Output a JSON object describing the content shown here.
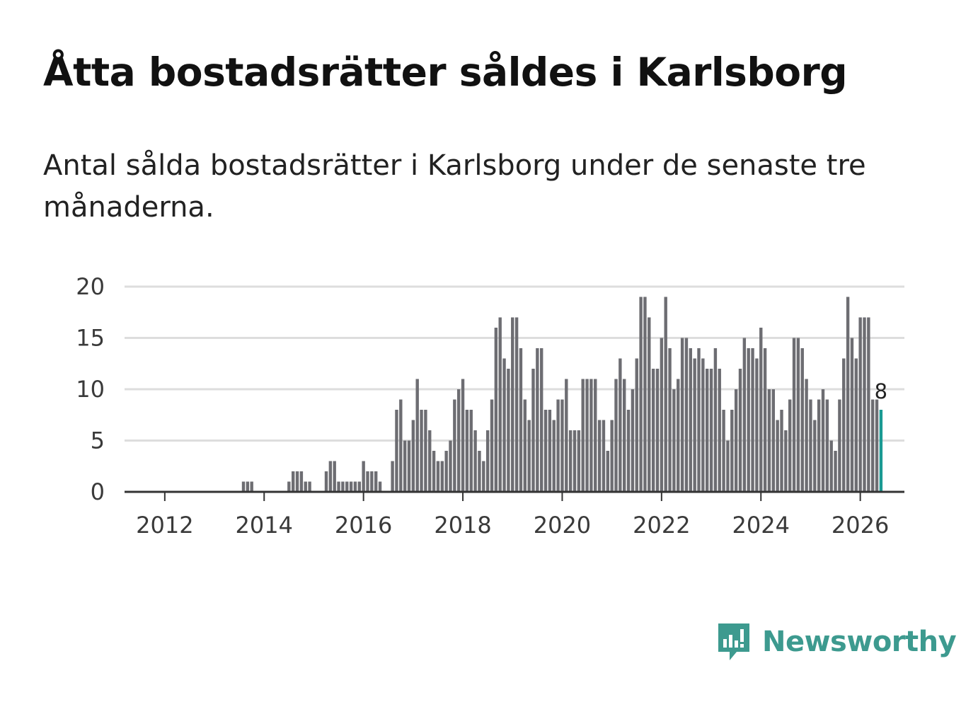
{
  "title": "Åtta bostadsrätter såldes i Karlsborg",
  "subtitle": "Antal sålda bostadsrätter i Karlsborg under de senaste tre månaderna.",
  "brand": {
    "name": "Newsworthy",
    "icon": "newsworthy-logo-icon"
  },
  "colors": {
    "bar": "#6d6d72",
    "highlight": "#1a9a93",
    "grid": "#dddddd",
    "axis": "#333333",
    "brand": "#3d9a8f"
  },
  "chart_data": {
    "type": "bar",
    "title": "",
    "xlabel": "",
    "ylabel": "",
    "ylim": [
      0,
      20
    ],
    "yticks": [
      0,
      5,
      10,
      15,
      20
    ],
    "xticks": [
      "2012",
      "2014",
      "2016",
      "2018",
      "2020",
      "2022",
      "2024",
      "2026"
    ],
    "start_period": "2011-04",
    "interval": "month",
    "highlight_label": "8",
    "series": [
      {
        "name": "Antal sålda bostadsrätter",
        "values": [
          0,
          0,
          0,
          0,
          0,
          0,
          0,
          0,
          0,
          0,
          0,
          0,
          0,
          0,
          0,
          0,
          0,
          0,
          0,
          0,
          0,
          0,
          0,
          0,
          0,
          0,
          0,
          0,
          1,
          1,
          1,
          0,
          0,
          0,
          0,
          0,
          0,
          0,
          0,
          1,
          2,
          2,
          2,
          1,
          1,
          0,
          0,
          0,
          2,
          3,
          3,
          1,
          1,
          1,
          1,
          1,
          1,
          3,
          2,
          2,
          2,
          1,
          0,
          0,
          3,
          8,
          9,
          5,
          5,
          7,
          11,
          8,
          8,
          6,
          4,
          3,
          3,
          4,
          5,
          9,
          10,
          11,
          8,
          8,
          6,
          4,
          3,
          6,
          9,
          16,
          17,
          13,
          12,
          17,
          17,
          14,
          9,
          7,
          12,
          14,
          14,
          8,
          8,
          7,
          9,
          9,
          11,
          6,
          6,
          6,
          11,
          11,
          11,
          11,
          7,
          7,
          4,
          7,
          11,
          13,
          11,
          8,
          10,
          13,
          19,
          19,
          17,
          12,
          12,
          15,
          19,
          14,
          10,
          11,
          15,
          15,
          14,
          13,
          14,
          13,
          12,
          12,
          14,
          12,
          8,
          5,
          8,
          10,
          12,
          15,
          14,
          14,
          13,
          16,
          14,
          10,
          10,
          7,
          8,
          6,
          9,
          15,
          15,
          14,
          11,
          9,
          7,
          9,
          10,
          9,
          5,
          4,
          9,
          13,
          19,
          15,
          13,
          17,
          17,
          17,
          9,
          9,
          8
        ]
      }
    ]
  }
}
